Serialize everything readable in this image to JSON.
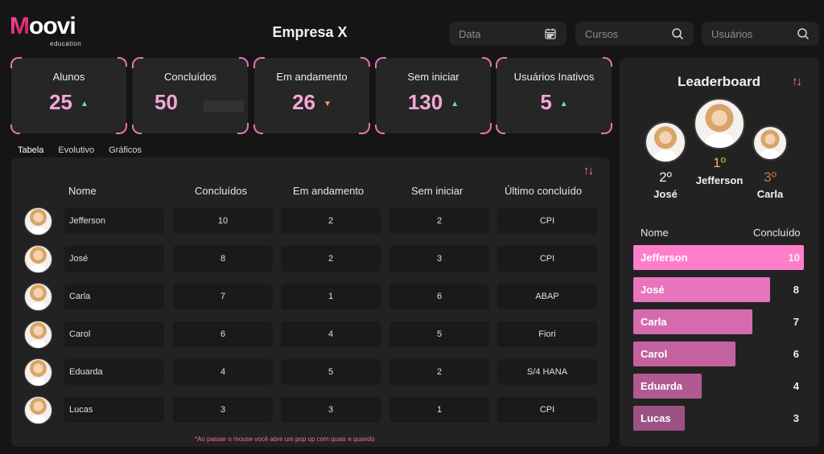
{
  "brand": {
    "logo_main": "oovi",
    "logo_m": "M",
    "logo_sub": "education"
  },
  "header": {
    "company": "Empresa X",
    "fields": [
      {
        "label": "Data",
        "icon": "calendar-icon"
      },
      {
        "label": "Cursos",
        "icon": "search-icon"
      },
      {
        "label": "Usuários",
        "icon": "search-icon"
      }
    ]
  },
  "stats": [
    {
      "label": "Alunos",
      "value": "25",
      "trend": "up"
    },
    {
      "label": "Concluídos",
      "value": "50",
      "trend": "none"
    },
    {
      "label": "Em andamento",
      "value": "26",
      "trend": "down"
    },
    {
      "label": "Sem iniciar",
      "value": "130",
      "trend": "up"
    },
    {
      "label": "Usuários Inativos",
      "value": "5",
      "trend": "up"
    }
  ],
  "tabs": [
    "Tabela",
    "Evolutivo",
    "Gráficos"
  ],
  "table": {
    "headers": [
      "Nome",
      "Concluídos",
      "Em andamento",
      "Sem iniciar",
      "Último concluído"
    ],
    "rows": [
      [
        "Jefferson",
        "10",
        "2",
        "2",
        "CPI"
      ],
      [
        "José",
        "8",
        "2",
        "3",
        "CPI"
      ],
      [
        "Carla",
        "7",
        "1",
        "6",
        "ABAP"
      ],
      [
        "Carol",
        "6",
        "4",
        "5",
        "Fiori"
      ],
      [
        "Eduarda",
        "4",
        "5",
        "2",
        "S/4 HANA"
      ],
      [
        "Lucas",
        "3",
        "3",
        "1",
        "CPI"
      ]
    ],
    "footnote": "*Ao passar o mouse você abre um pop up com quais e quando"
  },
  "leaderboard": {
    "title": "Leaderboard",
    "podium": [
      {
        "place": "2º",
        "name": "José",
        "color": "#f0f0f0"
      },
      {
        "place": "1º",
        "name": "Jefferson",
        "color": "#f2b84b"
      },
      {
        "place": "3º",
        "name": "Carla",
        "color": "#c0764a"
      }
    ],
    "col_name": "Nome",
    "col_value": "Concluído",
    "max": 10,
    "entries": [
      {
        "name": "Jefferson",
        "value": 10,
        "label": "10",
        "color": "#ff7ecb"
      },
      {
        "name": "José",
        "value": 8,
        "label": "8",
        "color": "#e874be"
      },
      {
        "name": "Carla",
        "value": 7,
        "label": "7",
        "color": "#d56aaf"
      },
      {
        "name": "Carol",
        "value": 6,
        "label": "6",
        "color": "#c4629f"
      },
      {
        "name": "Eduarda",
        "value": 4,
        "label": "4",
        "color": "#b05a90"
      },
      {
        "name": "Lucas",
        "value": 3,
        "label": "3",
        "color": "#9c5282"
      }
    ]
  },
  "colors": {
    "accent": "#e774b8",
    "card_value": "#f6a6d6"
  }
}
